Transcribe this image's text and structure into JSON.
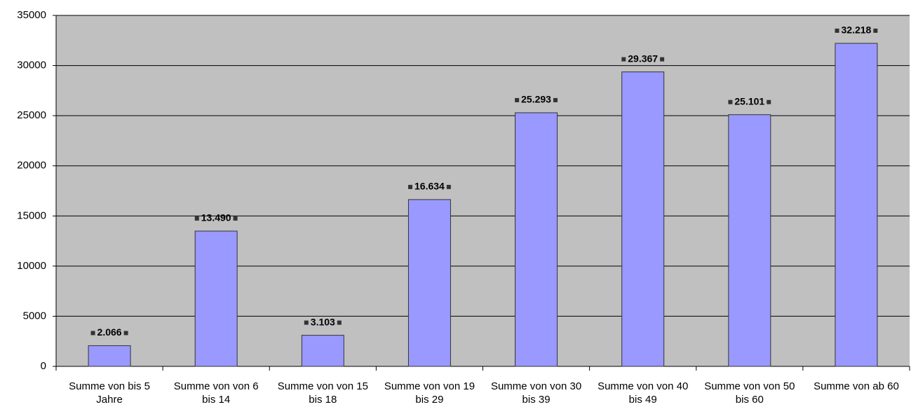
{
  "chart_data": {
    "type": "bar",
    "categories": [
      "Summe von bis 5 Jahre",
      "Summe von von 6 bis 14",
      "Summe von von 15 bis 18",
      "Summe von von 19 bis 29",
      "Summe von von 30 bis 39",
      "Summe von von 40 bis 49",
      "Summe von von 50 bis 60",
      "Summe von ab 60"
    ],
    "values": [
      2066,
      13490,
      3103,
      16634,
      25293,
      29367,
      25101,
      32218
    ],
    "value_labels": [
      "2.066",
      "13.490",
      "3.103",
      "16.634",
      "25.293",
      "29.367",
      "25.101",
      "32.218"
    ],
    "color": "#9999ff",
    "ylim": [
      0,
      35000
    ],
    "yticks": [
      0,
      5000,
      10000,
      15000,
      20000,
      25000,
      30000,
      35000
    ],
    "grid": true
  }
}
